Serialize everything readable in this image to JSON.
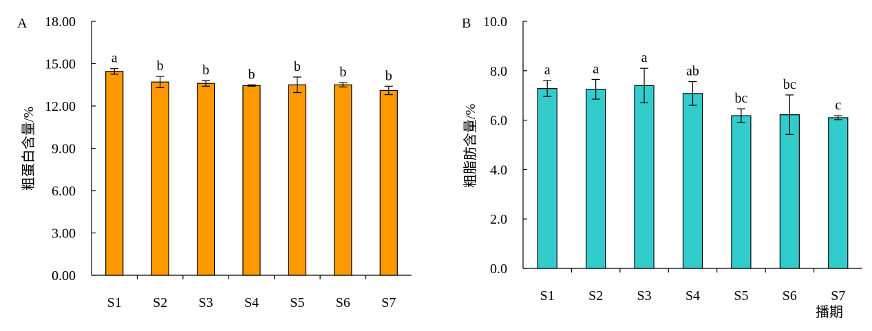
{
  "chart_data": [
    {
      "panel_label": "A",
      "type": "bar",
      "categories": [
        "S1",
        "S2",
        "S3",
        "S4",
        "S5",
        "S6",
        "S7"
      ],
      "values": [
        14.45,
        13.7,
        13.6,
        13.45,
        13.5,
        13.5,
        13.1
      ],
      "errors": [
        0.2,
        0.4,
        0.2,
        0.05,
        0.55,
        0.15,
        0.3
      ],
      "significance": [
        "a",
        "b",
        "b",
        "b",
        "b",
        "b",
        "b"
      ],
      "ylabel": "粗蛋白含量/%",
      "xlabel": "",
      "ylim": [
        0,
        18
      ],
      "yticks": [
        "0.00",
        "3.00",
        "6.00",
        "9.00",
        "12.00",
        "15.00",
        "18.00"
      ],
      "color": "#FF9900",
      "grid": false
    },
    {
      "panel_label": "B",
      "type": "bar",
      "categories": [
        "S1",
        "S2",
        "S3",
        "S4",
        "S5",
        "S6",
        "S7"
      ],
      "values": [
        7.28,
        7.25,
        7.4,
        7.08,
        6.18,
        6.22,
        6.1
      ],
      "errors": [
        0.32,
        0.4,
        0.7,
        0.48,
        0.28,
        0.8,
        0.08
      ],
      "significance": [
        "a",
        "a",
        "a",
        "ab",
        "bc",
        "bc",
        "c"
      ],
      "ylabel": "粗脂肪含量/%",
      "xlabel": "播期",
      "ylim": [
        0,
        10
      ],
      "yticks": [
        "0.0",
        "2.0",
        "4.0",
        "6.0",
        "8.0",
        "10.0"
      ],
      "color": "#33CCCC",
      "grid": false
    }
  ]
}
